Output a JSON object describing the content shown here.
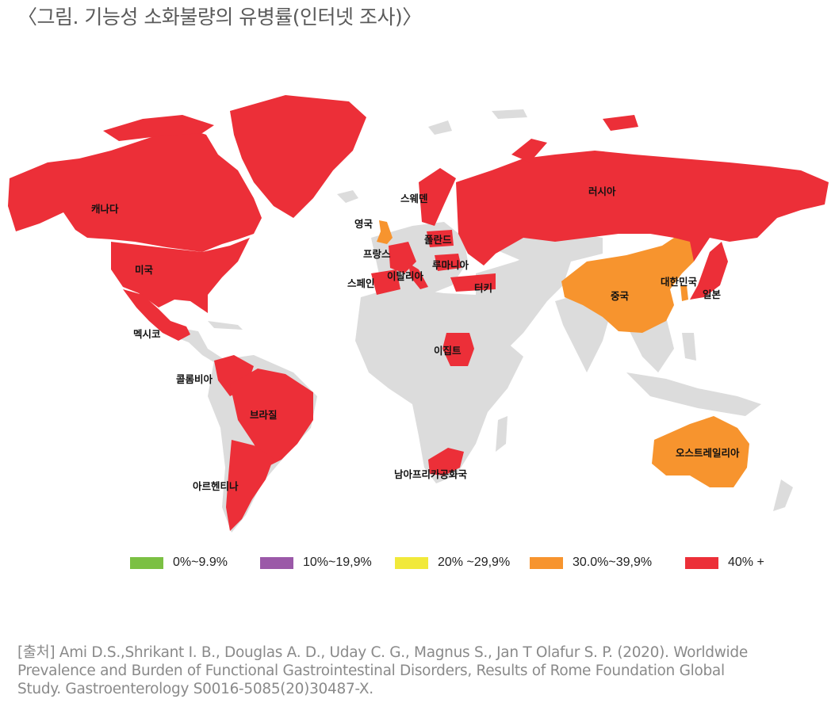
{
  "title": "〈그림. 기능성 소화불량의 유병률(인터넷 조사)〉",
  "colors": {
    "land": "#dcdcdc",
    "high": "#ec2f38",
    "mid": "#f7942e",
    "border": "#f5c6a0"
  },
  "countries": [
    {
      "name": "캐나다",
      "level": "40% +"
    },
    {
      "name": "미국",
      "level": "40% +"
    },
    {
      "name": "멕시코",
      "level": "40% +"
    },
    {
      "name": "콜롬비아",
      "level": "40% +"
    },
    {
      "name": "브라질",
      "level": "40% +"
    },
    {
      "name": "아르헨티나",
      "level": "40% +"
    },
    {
      "name": "영국",
      "level": "30.0%~39,9%"
    },
    {
      "name": "스웨덴",
      "level": "40% +"
    },
    {
      "name": "폴란드",
      "level": "40% +"
    },
    {
      "name": "프랑스",
      "level": "40% +"
    },
    {
      "name": "루마니아",
      "level": "40% +"
    },
    {
      "name": "스페인",
      "level": "40% +"
    },
    {
      "name": "이탈리아",
      "level": "40% +"
    },
    {
      "name": "터키",
      "level": "40% +"
    },
    {
      "name": "러시아",
      "level": "40% +"
    },
    {
      "name": "중국",
      "level": "30.0%~39,9%"
    },
    {
      "name": "대한민국",
      "level": "30.0%~39,9%"
    },
    {
      "name": "일본",
      "level": "40% +"
    },
    {
      "name": "이집트",
      "level": "40% +"
    },
    {
      "name": "남아프리카공화국",
      "level": "40% +"
    },
    {
      "name": "오스트레일리아",
      "level": "30.0%~39,9%"
    }
  ],
  "legend": [
    {
      "label": "0%~9.9%",
      "color": "#7bc043"
    },
    {
      "label": "10%~19,9%",
      "color": "#9b59a8"
    },
    {
      "label": "20% ~29,9%",
      "color": "#f1e93a"
    },
    {
      "label": "30.0%~39,9%",
      "color": "#f7942e"
    },
    {
      "label": "40% +",
      "color": "#ec2f38"
    }
  ],
  "source": {
    "line1": "[출처] Ami D.S.,Shrikant I. B., Douglas A. D., Uday C. G., Magnus S., Jan T Olafur S. P. (2020). Worldwide",
    "line2": "Prevalence and Burden of Functional Gastrointestinal Disorders, Results of Rome Foundation Global",
    "line3": "Study. Gastroenterology S0016-5085(20)30487-X."
  }
}
